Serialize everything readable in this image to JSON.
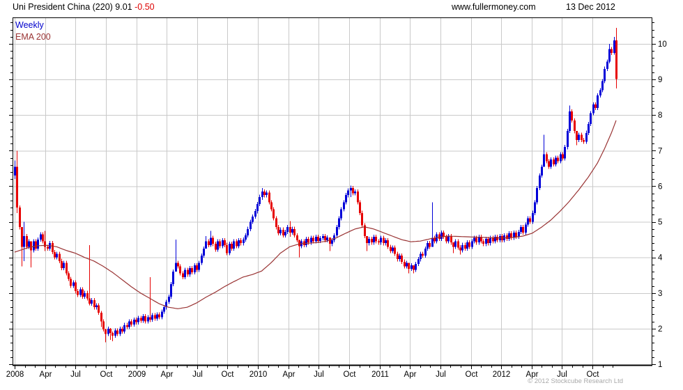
{
  "header": {
    "title": "Uni President China (220) 9.01",
    "change": "-0.50",
    "site": "www.fullermoney.com",
    "date": "13 Dec 2012"
  },
  "legend": {
    "series_label": "Weekly",
    "ema_label": "EMA 200"
  },
  "footer": {
    "copyright": "© 2012 Stockcube Research Ltd"
  },
  "colors": {
    "up_candle": "#0000d8",
    "down_candle": "#e60000",
    "ema_line": "#993333",
    "grid": "#c9c9c9",
    "axis": "#000000",
    "tick_text": "#000000",
    "muted_text": "#a9a9a9",
    "change_text": "#dd0000",
    "weekly_text": "#0000cc"
  },
  "chart_data": {
    "type": "candlestick",
    "title": "Uni President China (220)",
    "timeframe": "weekly",
    "x_range": [
      "Jan 2008",
      "13 Dec 2012"
    ],
    "ylim": [
      1,
      10.74
    ],
    "y_ticks": [
      1,
      2,
      3,
      4,
      5,
      6,
      7,
      8,
      9,
      10
    ],
    "y_minor_step": 0.2,
    "grid": true,
    "x_tick_labels": [
      "2008",
      "Apr",
      "Jul",
      "Oct",
      "2009",
      "Apr",
      "Jul",
      "Oct",
      "2010",
      "Apr",
      "Jul",
      "Oct",
      "2011",
      "Apr",
      "Jul",
      "Oct",
      "2012",
      "Apr",
      "Jul",
      "Oct"
    ],
    "weeks_per_quarter": 13.045,
    "first_open": 6.3,
    "last_close": 9.01,
    "closes": [
      6.55,
      5.4,
      4.85,
      4.3,
      4.6,
      4.3,
      4.45,
      4.2,
      4.45,
      4.25,
      4.5,
      4.65,
      4.45,
      4.3,
      4.25,
      4.4,
      4.15,
      4.0,
      4.1,
      3.9,
      3.7,
      3.85,
      3.55,
      3.4,
      3.2,
      3.3,
      3.05,
      2.95,
      3.1,
      2.9,
      3.0,
      2.85,
      2.7,
      2.8,
      2.6,
      2.65,
      2.45,
      2.2,
      1.98,
      1.85,
      2.0,
      1.88,
      1.8,
      1.95,
      1.85,
      2.0,
      1.92,
      2.1,
      2.05,
      2.2,
      2.12,
      2.25,
      2.18,
      2.3,
      2.22,
      2.35,
      2.2,
      2.32,
      2.25,
      2.38,
      2.28,
      2.4,
      2.32,
      2.48,
      2.6,
      2.75,
      2.9,
      3.25,
      3.6,
      3.85,
      3.75,
      3.55,
      3.45,
      3.65,
      3.52,
      3.7,
      3.58,
      3.78,
      3.65,
      3.85,
      4.05,
      4.25,
      4.45,
      4.35,
      4.55,
      4.38,
      4.22,
      4.45,
      4.32,
      4.48,
      4.35,
      4.12,
      4.38,
      4.25,
      4.45,
      4.32,
      4.48,
      4.4,
      4.5,
      4.62,
      4.8,
      5.0,
      5.15,
      5.3,
      5.5,
      5.7,
      5.85,
      5.75,
      5.82,
      5.55,
      5.35,
      5.1,
      4.85,
      4.68,
      4.78,
      4.62,
      4.72,
      4.85,
      4.7,
      4.8,
      4.62,
      4.48,
      4.32,
      4.45,
      4.35,
      4.52,
      4.42,
      4.55,
      4.45,
      4.58,
      4.46,
      4.54,
      4.6,
      4.48,
      4.56,
      4.38,
      4.48,
      4.62,
      4.85,
      5.1,
      5.35,
      5.55,
      5.75,
      5.88,
      5.95,
      5.8,
      5.85,
      5.55,
      5.25,
      4.9,
      4.6,
      4.4,
      4.52,
      4.42,
      4.58,
      4.45,
      4.42,
      4.55,
      4.4,
      4.48,
      4.3,
      4.18,
      4.28,
      4.1,
      3.95,
      4.05,
      3.88,
      3.75,
      3.85,
      3.68,
      3.78,
      3.65,
      3.82,
      3.95,
      4.1,
      4.05,
      4.25,
      4.4,
      4.3,
      4.55,
      4.45,
      4.65,
      4.52,
      4.7,
      4.58,
      4.45,
      4.6,
      4.42,
      4.3,
      4.45,
      4.28,
      4.2,
      4.35,
      4.25,
      4.42,
      4.3,
      4.45,
      4.55,
      4.42,
      4.58,
      4.45,
      4.38,
      4.52,
      4.4,
      4.55,
      4.45,
      4.58,
      4.48,
      4.6,
      4.48,
      4.62,
      4.52,
      4.68,
      4.55,
      4.7,
      4.58,
      4.72,
      4.85,
      4.7,
      4.92,
      5.1,
      5.0,
      5.25,
      5.55,
      5.95,
      6.3,
      6.55,
      6.9,
      6.7,
      6.55,
      6.75,
      6.62,
      6.8,
      6.7,
      6.9,
      6.78,
      7.1,
      7.55,
      8.1,
      7.85,
      7.55,
      7.3,
      7.45,
      7.3,
      7.25,
      7.5,
      7.75,
      8.05,
      8.3,
      8.2,
      8.55,
      8.7,
      8.95,
      9.3,
      9.5,
      9.85,
      9.75,
      10.1,
      9.01
    ],
    "wick_default": 0.06,
    "wick_overrides": {
      "0": [
        6.72,
        6.2
      ],
      "1": [
        7.0,
        5.25
      ],
      "3": [
        4.45,
        3.75
      ],
      "4": [
        5.0,
        3.9
      ],
      "7": [
        4.3,
        3.72
      ],
      "13": [
        4.75,
        4.18
      ],
      "32": [
        4.35,
        2.65
      ],
      "37": [
        2.5,
        2.05
      ],
      "39": [
        2.0,
        1.62
      ],
      "41": [
        2.02,
        1.68
      ],
      "42": [
        1.92,
        1.65
      ],
      "58": [
        3.45,
        2.18
      ],
      "69": [
        4.5,
        3.6
      ],
      "82": [
        4.6,
        4.25
      ],
      "84": [
        4.75,
        4.3
      ],
      "106": [
        5.95,
        5.62
      ],
      "118": [
        5.02,
        4.58
      ],
      "122": [
        4.5,
        4.0
      ],
      "135": [
        4.5,
        4.18
      ],
      "144": [
        6.02,
        5.7
      ],
      "151": [
        4.5,
        4.18
      ],
      "169": [
        3.78,
        3.55
      ],
      "171": [
        3.75,
        3.55
      ],
      "179": [
        5.55,
        4.3
      ],
      "188": [
        4.4,
        4.12
      ],
      "191": [
        4.35,
        4.08
      ],
      "227": [
        7.45,
        6.55
      ],
      "238": [
        8.27,
        7.5
      ],
      "241": [
        7.4,
        7.15
      ],
      "255": [
        10.0,
        9.45
      ],
      "257": [
        10.2,
        9.7
      ],
      "258": [
        10.45,
        8.75
      ]
    },
    "ema_points": [
      [
        0,
        4.15
      ],
      [
        6,
        4.28
      ],
      [
        10,
        4.33
      ],
      [
        14,
        4.34
      ],
      [
        18,
        4.3
      ],
      [
        22,
        4.2
      ],
      [
        26,
        4.12
      ],
      [
        30,
        4.0
      ],
      [
        34,
        3.9
      ],
      [
        38,
        3.75
      ],
      [
        42,
        3.58
      ],
      [
        46,
        3.38
      ],
      [
        50,
        3.18
      ],
      [
        54,
        3.0
      ],
      [
        58,
        2.85
      ],
      [
        62,
        2.7
      ],
      [
        66,
        2.6
      ],
      [
        70,
        2.56
      ],
      [
        74,
        2.6
      ],
      [
        78,
        2.72
      ],
      [
        82,
        2.88
      ],
      [
        86,
        3.02
      ],
      [
        90,
        3.18
      ],
      [
        94,
        3.32
      ],
      [
        98,
        3.45
      ],
      [
        102,
        3.52
      ],
      [
        106,
        3.62
      ],
      [
        110,
        3.85
      ],
      [
        114,
        4.12
      ],
      [
        118,
        4.3
      ],
      [
        122,
        4.38
      ],
      [
        126,
        4.4
      ],
      [
        130,
        4.42
      ],
      [
        134,
        4.46
      ],
      [
        138,
        4.55
      ],
      [
        142,
        4.68
      ],
      [
        146,
        4.8
      ],
      [
        150,
        4.86
      ],
      [
        154,
        4.8
      ],
      [
        158,
        4.7
      ],
      [
        162,
        4.6
      ],
      [
        166,
        4.5
      ],
      [
        170,
        4.44
      ],
      [
        174,
        4.46
      ],
      [
        178,
        4.52
      ],
      [
        182,
        4.57
      ],
      [
        186,
        4.6
      ],
      [
        190,
        4.59
      ],
      [
        194,
        4.58
      ],
      [
        198,
        4.57
      ],
      [
        202,
        4.56
      ],
      [
        206,
        4.55
      ],
      [
        210,
        4.55
      ],
      [
        214,
        4.56
      ],
      [
        218,
        4.6
      ],
      [
        222,
        4.68
      ],
      [
        226,
        4.85
      ],
      [
        230,
        5.05
      ],
      [
        234,
        5.3
      ],
      [
        238,
        5.58
      ],
      [
        242,
        5.9
      ],
      [
        246,
        6.25
      ],
      [
        250,
        6.65
      ],
      [
        253,
        7.05
      ],
      [
        256,
        7.5
      ],
      [
        258,
        7.85
      ]
    ]
  }
}
